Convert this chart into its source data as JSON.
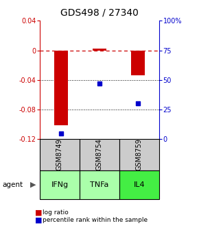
{
  "title": "GDS498 / 27340",
  "samples": [
    "GSM8749",
    "GSM8754",
    "GSM8759"
  ],
  "agents": [
    "IFNg",
    "TNFa",
    "IL4"
  ],
  "log_ratios": [
    -0.101,
    0.002,
    -0.034
  ],
  "percentile_ranks": [
    4.5,
    47.0,
    30.0
  ],
  "ylim_left": [
    -0.12,
    0.04
  ],
  "ylim_right": [
    0,
    100
  ],
  "yticks_left": [
    0.04,
    0.0,
    -0.04,
    -0.08,
    -0.12
  ],
  "yticks_right": [
    100,
    75,
    50,
    25,
    0
  ],
  "bar_color": "#cc0000",
  "square_color": "#0000cc",
  "agent_color_light": "#aaffaa",
  "agent_color_bright": "#44ee44",
  "sample_box_color": "#cccccc",
  "grid_color": "#000000",
  "zero_line_color": "#cc0000",
  "background_color": "#ffffff",
  "title_fontsize": 10,
  "tick_fontsize": 7,
  "bar_width": 0.35
}
